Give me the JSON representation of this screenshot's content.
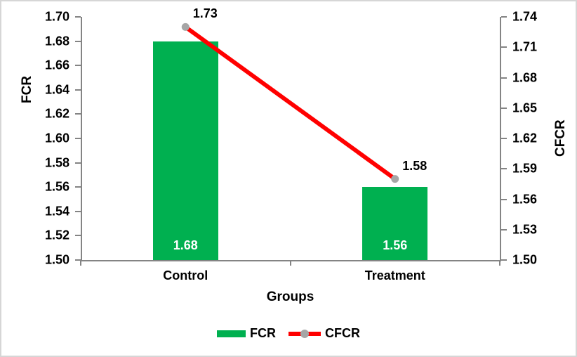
{
  "chart_data": {
    "type": "bar",
    "subtype": "bar-line-combo",
    "categories": [
      "Control",
      "Treatment"
    ],
    "series": [
      {
        "name": "FCR",
        "render": "bar",
        "axis": "left",
        "values": [
          1.68,
          1.56
        ],
        "data_labels": [
          "1.68",
          "1.56"
        ],
        "data_label_color": "#ffffff",
        "color": "#00B050"
      },
      {
        "name": "CFCR",
        "render": "line",
        "axis": "right",
        "values": [
          1.73,
          1.58
        ],
        "data_labels": [
          "1.73",
          "1.58"
        ],
        "data_label_color": "#000000",
        "color": "#FF0000",
        "marker_color": "#A6A6A6"
      }
    ],
    "xlabel": "Groups",
    "left_axis": {
      "title": "FCR",
      "min": 1.5,
      "max": 1.7,
      "step": 0.02,
      "tick_format_decimals": 2
    },
    "right_axis": {
      "title": "CFCR",
      "min": 1.5,
      "max": 1.74,
      "step": 0.03,
      "tick_format_decimals": 2
    },
    "grid": false,
    "legend_position": "bottom",
    "legend": [
      {
        "label": "FCR",
        "swatch": "bar"
      },
      {
        "label": "CFCR",
        "swatch": "line-marker"
      }
    ]
  }
}
